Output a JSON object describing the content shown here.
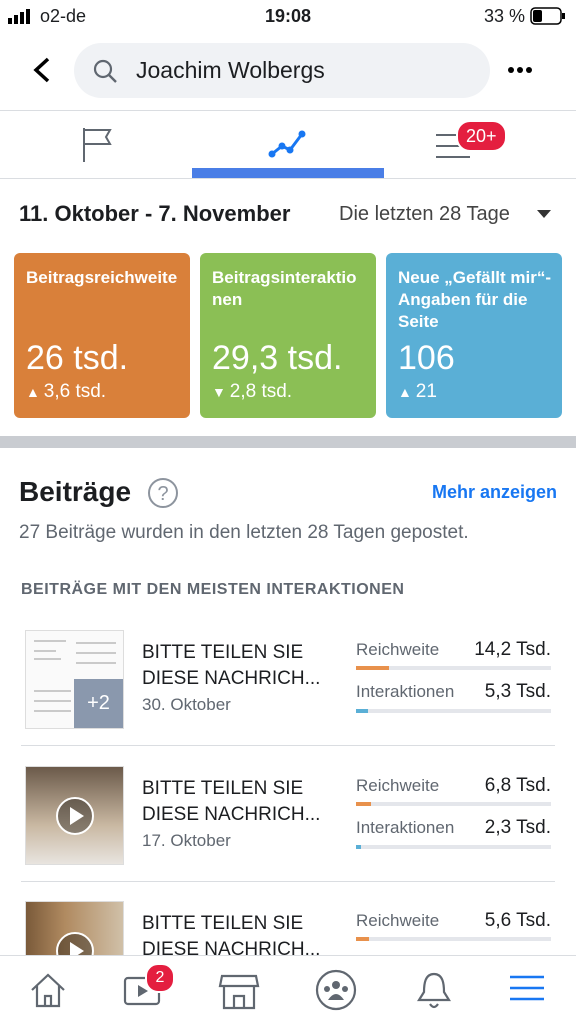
{
  "status_bar": {
    "carrier": "o2-de",
    "time": "19:08",
    "battery": "33 %"
  },
  "search": {
    "query": "Joachim Wolbergs"
  },
  "tabs": {
    "badge": "20+"
  },
  "period": {
    "range": "11. Oktober - 7. November",
    "selector": "Die letzten 28 Tage"
  },
  "cards": [
    {
      "title": "Beitragsreichweite",
      "value": "26 tsd.",
      "change": "3,6 tsd."
    },
    {
      "title": "Beitragsinteraktionen",
      "value": "29,3 tsd.",
      "change": "2,8 tsd."
    },
    {
      "title": "Neue „Gefällt mir“-Angaben für die Seite",
      "value": "106",
      "change": "21"
    }
  ],
  "posts_section": {
    "title": "Beiträge",
    "more": "Mehr anzeigen",
    "description": "27 Beiträge wurden in den letzten 28 Tagen gepostet.",
    "subheading": "BEITRÄGE MIT DEN MEISTEN INTERAKTIONEN"
  },
  "posts": [
    {
      "title": "BITTE TEILEN SIE DIESE NACHRICH...",
      "date": "30. Oktober",
      "extra": "+2",
      "reach_label": "Reichweite",
      "reach": "14,2 Tsd.",
      "interactions_label": "Interaktionen",
      "interactions": "5,3 Tsd."
    },
    {
      "title": "BITTE TEILEN SIE DIESE NACHRICH...",
      "date": "17. Oktober",
      "reach_label": "Reichweite",
      "reach": "6,8 Tsd.",
      "interactions_label": "Interaktionen",
      "interactions": "2,3 Tsd."
    },
    {
      "title": "BITTE TEILEN SIE DIESE NACHRICH...",
      "reach_label": "Reichweite",
      "reach": "5,6 Tsd."
    }
  ],
  "bottom_nav": {
    "watch_badge": "2"
  }
}
